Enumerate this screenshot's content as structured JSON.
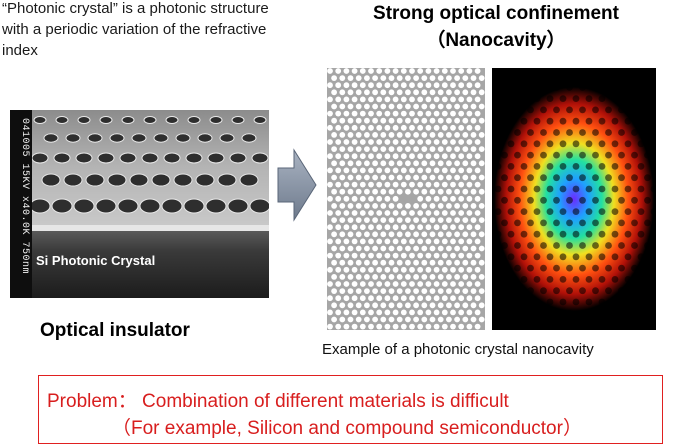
{
  "intro": {
    "line1": "“Photonic crystal” is  a photonic structure",
    "line2": "with a periodic variation of the refractive",
    "line3": "index"
  },
  "heading": {
    "line1": "Strong optical confinement",
    "line2": "（Nanocavity）"
  },
  "sem": {
    "label": "Si Photonic Crystal",
    "scale_text": "041005 15KV x40.0K 750nm"
  },
  "left_caption": "Optical insulator",
  "right_caption": "Example of a photonic crystal nanocavity",
  "problem": {
    "line1": "Problem： Combination of different materials is difficult",
    "line2": "（For example, Silicon and compound semiconductor）"
  },
  "colors": {
    "problem_text": "#d81e1e",
    "problem_border": "#e02020",
    "arrow_fill": "#8a96a8"
  }
}
